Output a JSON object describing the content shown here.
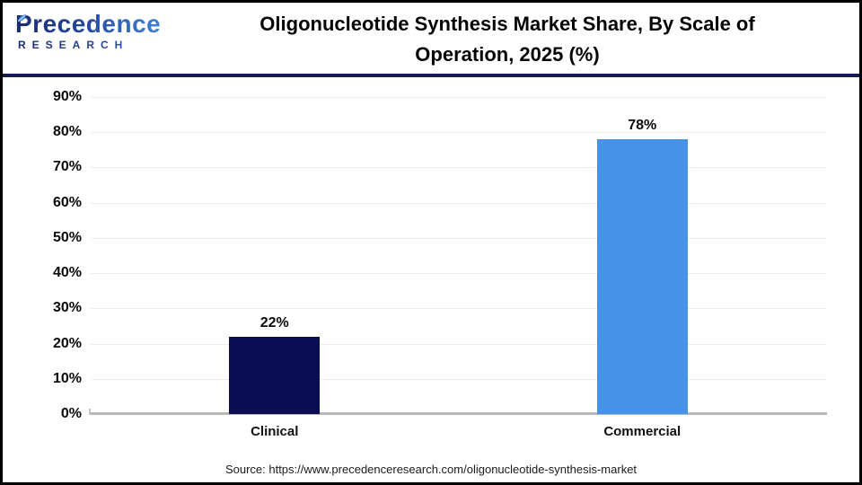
{
  "header": {
    "logo": {
      "line1": "Precedence",
      "line2": "RESEARCH"
    },
    "title_line1": "Oligonucleotide Synthesis Market Share, By Scale of",
    "title_line2": "Operation, 2025 (%)"
  },
  "chart_data": {
    "type": "bar",
    "title": "Oligonucleotide Synthesis Market Share, By Scale of Operation, 2025 (%)",
    "categories": [
      "Clinical",
      "Commercial"
    ],
    "values": [
      22,
      78
    ],
    "value_labels": [
      "22%",
      "78%"
    ],
    "xlabel": "",
    "ylabel": "",
    "ylim": [
      0,
      90
    ],
    "ytick_values": [
      0,
      10,
      20,
      30,
      40,
      50,
      60,
      70,
      80,
      90
    ],
    "ytick_labels": [
      "0%",
      "10%",
      "20%",
      "30%",
      "40%",
      "50%",
      "60%",
      "70%",
      "80%",
      "90%"
    ],
    "grid": true,
    "legend_position": "none",
    "bar_colors": [
      "#0a0d51",
      "#4793ea"
    ]
  },
  "footer": {
    "source": "Source: https://www.precedenceresearch.com/oligonucleotide-synthesis-market"
  },
  "colors": {
    "separator_navy": "#151b54",
    "gridline": "#ececec",
    "axis_line": "#b8b8b8",
    "bar_clinical": "#0a0d51",
    "bar_commercial": "#4793ea"
  }
}
